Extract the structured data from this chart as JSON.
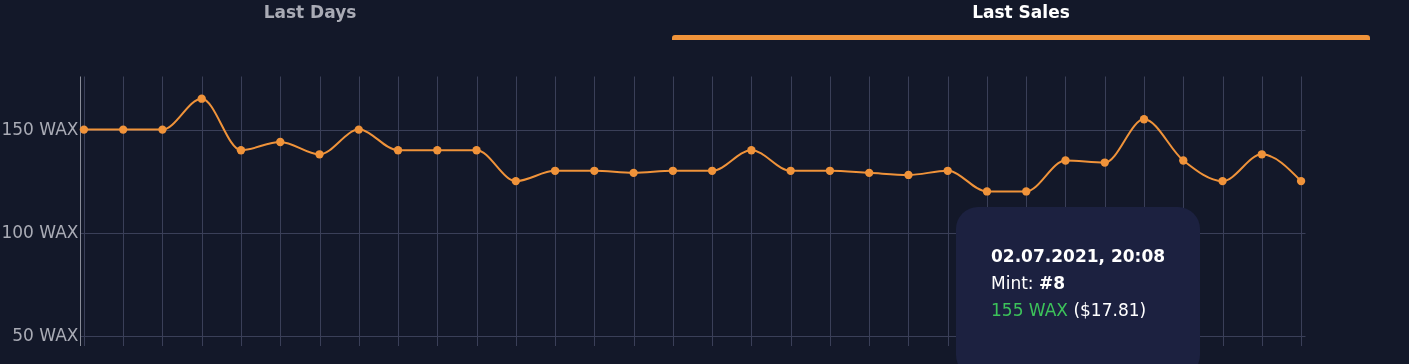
{
  "chart_data": {
    "type": "line",
    "categories": [
      null,
      null,
      null,
      null,
      null,
      null,
      null,
      null,
      null,
      null,
      null,
      null,
      null,
      null,
      null,
      null,
      null,
      null,
      null,
      null,
      null,
      null,
      null,
      null,
      null,
      null,
      null,
      null,
      null,
      null,
      null,
      null
    ],
    "series": [
      {
        "color": "#f0933a",
        "values": [
          150,
          150,
          150,
          165,
          140,
          144,
          138,
          150,
          140,
          140,
          140,
          125,
          130,
          130,
          129,
          130,
          130,
          140,
          130,
          130,
          129,
          128,
          130,
          120,
          120,
          135,
          134,
          155,
          135,
          125,
          138,
          125
        ]
      }
    ],
    "ylim": [
      45,
      176
    ],
    "yticks": [
      {
        "value": 50,
        "label": "50 WAX"
      },
      {
        "value": 100,
        "label": "100 WAX"
      },
      {
        "value": 150,
        "label": "150 WAX"
      }
    ],
    "tick_labels": "y",
    "grid": true,
    "marker": "circle",
    "line_style": "solid",
    "annotations": [
      "Last Days",
      "Last Sales",
      "02.07.2021, 20:08",
      "Mint:",
      "#8",
      "155 WAX",
      "($17.81)"
    ]
  }
}
